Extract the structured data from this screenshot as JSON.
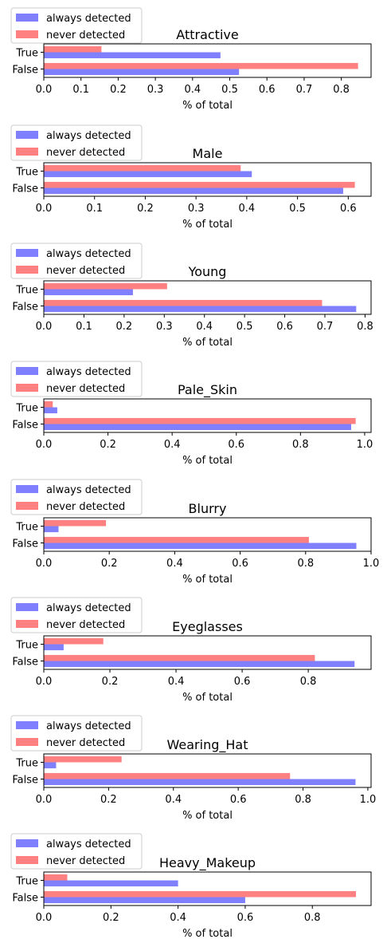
{
  "chart_data": [
    {
      "type": "bar",
      "orientation": "horizontal",
      "title": "Attractive",
      "xlabel": "% of total",
      "categories": [
        "False",
        "True"
      ],
      "xlim": [
        0,
        0.88
      ],
      "xticks": [
        "0.0",
        "0.1",
        "0.2",
        "0.3",
        "0.4",
        "0.5",
        "0.6",
        "0.7",
        "0.8"
      ],
      "xtick_values": [
        0,
        0.1,
        0.2,
        0.3,
        0.4,
        0.5,
        0.6,
        0.7,
        0.8
      ],
      "series": [
        {
          "name": "always detected",
          "values": [
            0.525,
            0.475
          ]
        },
        {
          "name": "never detected",
          "values": [
            0.845,
            0.155
          ]
        }
      ],
      "legend": "upper-left"
    },
    {
      "type": "bar",
      "orientation": "horizontal",
      "title": "Male",
      "xlabel": "% of total",
      "categories": [
        "False",
        "True"
      ],
      "xlim": [
        0,
        0.645
      ],
      "xticks": [
        "0.0",
        "0.1",
        "0.2",
        "0.3",
        "0.4",
        "0.5",
        "0.6"
      ],
      "xtick_values": [
        0,
        0.1,
        0.2,
        0.3,
        0.4,
        0.5,
        0.6
      ],
      "series": [
        {
          "name": "always detected",
          "values": [
            0.59,
            0.41
          ]
        },
        {
          "name": "never detected",
          "values": [
            0.613,
            0.388
          ]
        }
      ],
      "legend": "upper-left"
    },
    {
      "type": "bar",
      "orientation": "horizontal",
      "title": "Young",
      "xlabel": "% of total",
      "categories": [
        "False",
        "True"
      ],
      "xlim": [
        0,
        0.815
      ],
      "xticks": [
        "0.0",
        "0.1",
        "0.2",
        "0.3",
        "0.4",
        "0.5",
        "0.6",
        "0.7",
        "0.8"
      ],
      "xtick_values": [
        0,
        0.1,
        0.2,
        0.3,
        0.4,
        0.5,
        0.6,
        0.7,
        0.8
      ],
      "series": [
        {
          "name": "always detected",
          "values": [
            0.778,
            0.222
          ]
        },
        {
          "name": "never detected",
          "values": [
            0.693,
            0.307
          ]
        }
      ],
      "legend": "upper-left"
    },
    {
      "type": "bar",
      "orientation": "horizontal",
      "title": "Pale_Skin",
      "xlabel": "% of total",
      "categories": [
        "False",
        "True"
      ],
      "xlim": [
        0,
        1.02
      ],
      "xticks": [
        "0.0",
        "0.2",
        "0.4",
        "0.6",
        "0.8",
        "1.0"
      ],
      "xtick_values": [
        0,
        0.2,
        0.4,
        0.6,
        0.8,
        1.0
      ],
      "series": [
        {
          "name": "always detected",
          "values": [
            0.958,
            0.042
          ]
        },
        {
          "name": "never detected",
          "values": [
            0.972,
            0.028
          ]
        }
      ],
      "legend": "upper-left"
    },
    {
      "type": "bar",
      "orientation": "horizontal",
      "title": "Blurry",
      "xlabel": "% of total",
      "categories": [
        "False",
        "True"
      ],
      "xlim": [
        0,
        1.0
      ],
      "xticks": [
        "0.0",
        "0.2",
        "0.4",
        "0.6",
        "0.8",
        "1.0"
      ],
      "xtick_values": [
        0,
        0.2,
        0.4,
        0.6,
        0.8,
        1.0
      ],
      "series": [
        {
          "name": "always detected",
          "values": [
            0.955,
            0.045
          ]
        },
        {
          "name": "never detected",
          "values": [
            0.81,
            0.19
          ]
        }
      ],
      "legend": "upper-left"
    },
    {
      "type": "bar",
      "orientation": "horizontal",
      "title": "Eyeglasses",
      "xlabel": "% of total",
      "categories": [
        "False",
        "True"
      ],
      "xlim": [
        0,
        0.99
      ],
      "xticks": [
        "0.0",
        "0.2",
        "0.4",
        "0.6",
        "0.8"
      ],
      "xtick_values": [
        0,
        0.2,
        0.4,
        0.6,
        0.8
      ],
      "series": [
        {
          "name": "always detected",
          "values": [
            0.94,
            0.06
          ]
        },
        {
          "name": "never detected",
          "values": [
            0.82,
            0.18
          ]
        }
      ],
      "legend": "upper-left"
    },
    {
      "type": "bar",
      "orientation": "horizontal",
      "title": "Wearing_Hat",
      "xlabel": "% of total",
      "categories": [
        "False",
        "True"
      ],
      "xlim": [
        0,
        1.01
      ],
      "xticks": [
        "0.0",
        "0.2",
        "0.4",
        "0.6",
        "0.8",
        "1.0"
      ],
      "xtick_values": [
        0,
        0.2,
        0.4,
        0.6,
        0.8,
        1.0
      ],
      "series": [
        {
          "name": "always detected",
          "values": [
            0.962,
            0.038
          ]
        },
        {
          "name": "never detected",
          "values": [
            0.76,
            0.24
          ]
        }
      ],
      "legend": "upper-left"
    },
    {
      "type": "bar",
      "orientation": "horizontal",
      "title": "Heavy_Makeup",
      "xlabel": "% of total",
      "categories": [
        "False",
        "True"
      ],
      "xlim": [
        0,
        0.975
      ],
      "xticks": [
        "0.0",
        "0.2",
        "0.4",
        "0.6",
        "0.8"
      ],
      "xtick_values": [
        0,
        0.2,
        0.4,
        0.6,
        0.8
      ],
      "series": [
        {
          "name": "always detected",
          "values": [
            0.6,
            0.4
          ]
        },
        {
          "name": "never detected",
          "values": [
            0.93,
            0.07
          ]
        }
      ],
      "legend": "upper-left"
    }
  ],
  "colors": {
    "always detected": "#8080ff",
    "never detected": "#ff8080"
  }
}
